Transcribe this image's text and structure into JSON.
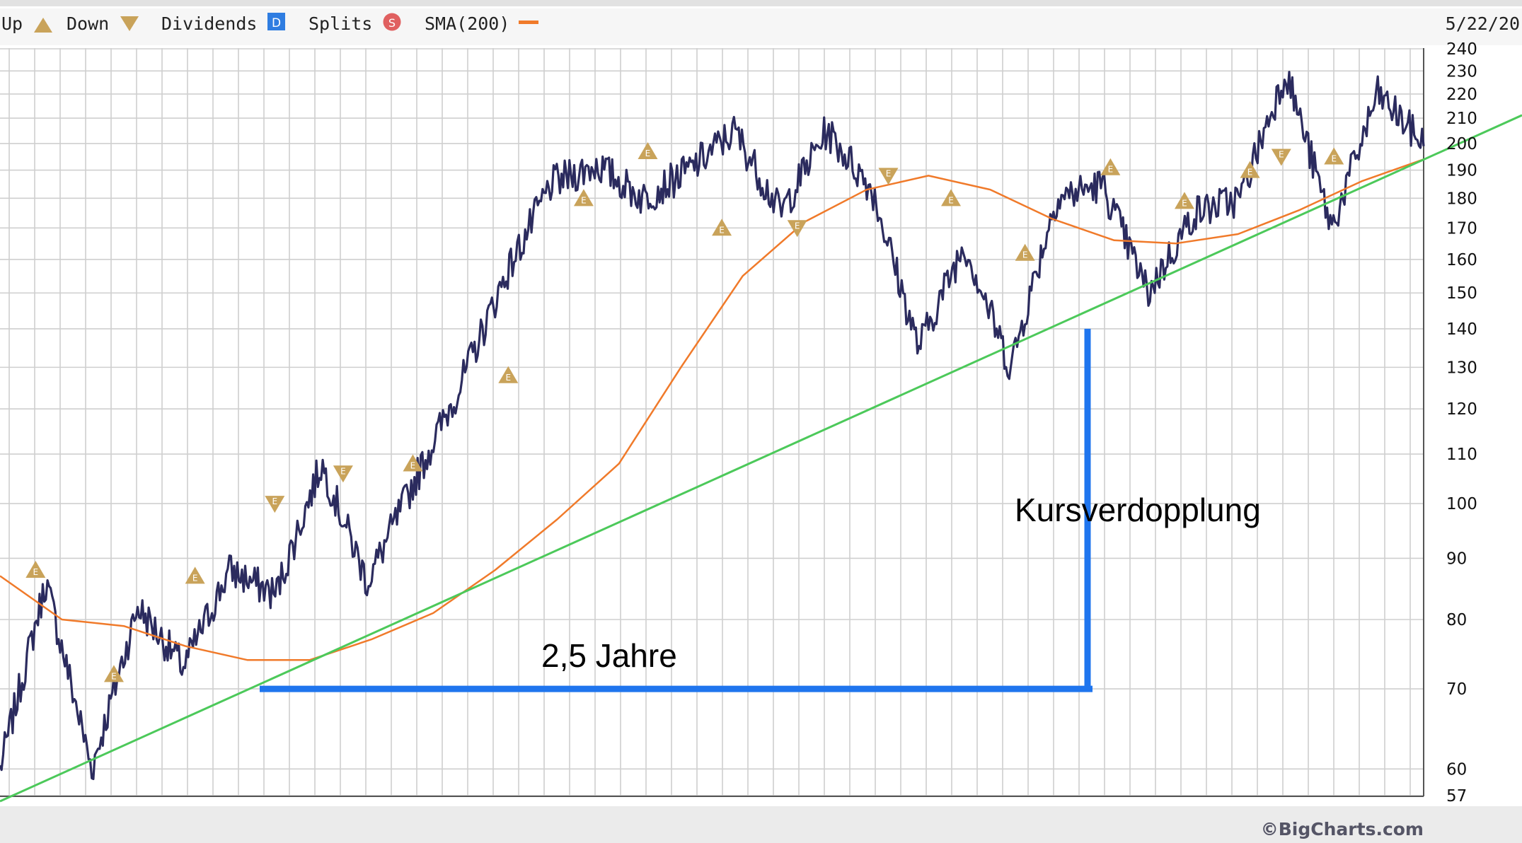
{
  "legend": {
    "up_label": "Up",
    "down_label": "Down",
    "dividends_label": "Dividends",
    "dividends_badge": "D",
    "splits_label": "Splits",
    "splits_badge": "S",
    "sma_label": "SMA(200)",
    "date_label": "5/22/20"
  },
  "brand": "©BigCharts.com",
  "icons": {
    "earnings_up": "earnings-up-triangle-icon",
    "earnings_down": "earnings-down-triangle-icon",
    "event_letter": "E"
  },
  "colors": {
    "price": "#2b2b5e",
    "sma": "#f07a2a",
    "trendline": "#4cc95a",
    "annotation": "#1f75ee",
    "earnings": "#c9a35a",
    "dividend_badge": "#2f7de1",
    "split_badge": "#e06060",
    "grid": "#cfcfcf"
  },
  "chart_data": {
    "type": "line",
    "y_scale": "log",
    "ylim": [
      57,
      240
    ],
    "grid": true,
    "y_ticks": [
      57,
      60,
      70,
      80,
      90,
      100,
      110,
      120,
      130,
      140,
      150,
      160,
      170,
      180,
      190,
      200,
      210,
      220,
      230,
      240
    ],
    "x_date_end": "5/22/20",
    "series": [
      {
        "name": "SMA(200)",
        "y": [
          87,
          80,
          79,
          76,
          74,
          74,
          77,
          81,
          88,
          97,
          108,
          130,
          155,
          172,
          183,
          188,
          183,
          173,
          166,
          165,
          168,
          176,
          186,
          194
        ]
      }
    ],
    "price_waypoints": [
      60,
      86,
      60,
      82,
      73,
      88,
      84,
      108,
      86,
      104,
      125,
      155,
      185,
      192,
      180,
      190,
      205,
      175,
      205,
      183,
      135,
      165,
      130,
      180,
      185,
      150,
      175,
      180,
      230,
      170,
      220,
      200
    ],
    "earnings_markers": {
      "up": [
        "E",
        "E",
        "E",
        "E",
        "E",
        "E",
        "E",
        "E",
        "E",
        "E",
        "E",
        "E",
        "E",
        "E"
      ],
      "down": [
        "E",
        "E",
        "E",
        "E",
        "E"
      ]
    },
    "annotations": [
      {
        "text": "2,5 Jahre",
        "line": "horizontal",
        "from_y": 70
      },
      {
        "text": "Kursverdopplung",
        "line": "vertical",
        "from_y": 70,
        "to_y": 140
      }
    ],
    "trendline": {
      "y_start": 57,
      "y_end": 200
    }
  }
}
